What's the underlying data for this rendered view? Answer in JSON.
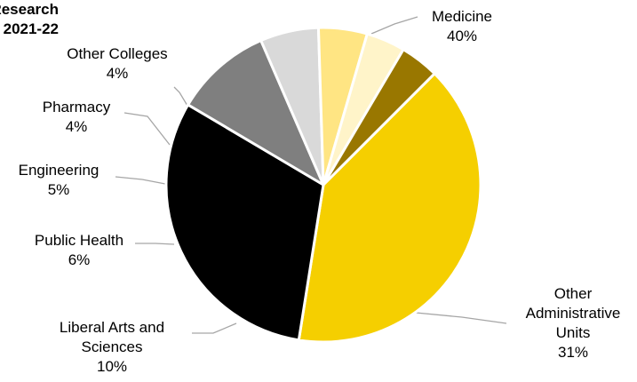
{
  "chart_data": {
    "type": "pie",
    "title_lines": [
      "Research",
      "2021-22"
    ],
    "slices": [
      {
        "label_lines": [
          "Medicine"
        ],
        "value": 40,
        "value_text": "40%",
        "color": "#F5CF00"
      },
      {
        "label_lines": [
          "Other",
          "Administrative",
          "Units"
        ],
        "value": 31,
        "value_text": "31%",
        "color": "#000000"
      },
      {
        "label_lines": [
          "Liberal Arts and",
          "Sciences"
        ],
        "value": 10,
        "value_text": "10%",
        "color": "#7F7F7F"
      },
      {
        "label_lines": [
          "Public Health"
        ],
        "value": 6,
        "value_text": "6%",
        "color": "#D9D9D9"
      },
      {
        "label_lines": [
          "Engineering"
        ],
        "value": 5,
        "value_text": "5%",
        "color": "#FFE583"
      },
      {
        "label_lines": [
          "Pharmacy"
        ],
        "value": 4,
        "value_text": "4%",
        "color": "#FFF4C9"
      },
      {
        "label_lines": [
          "Other Colleges"
        ],
        "value": 4,
        "value_text": "4%",
        "color": "#997700"
      }
    ]
  }
}
